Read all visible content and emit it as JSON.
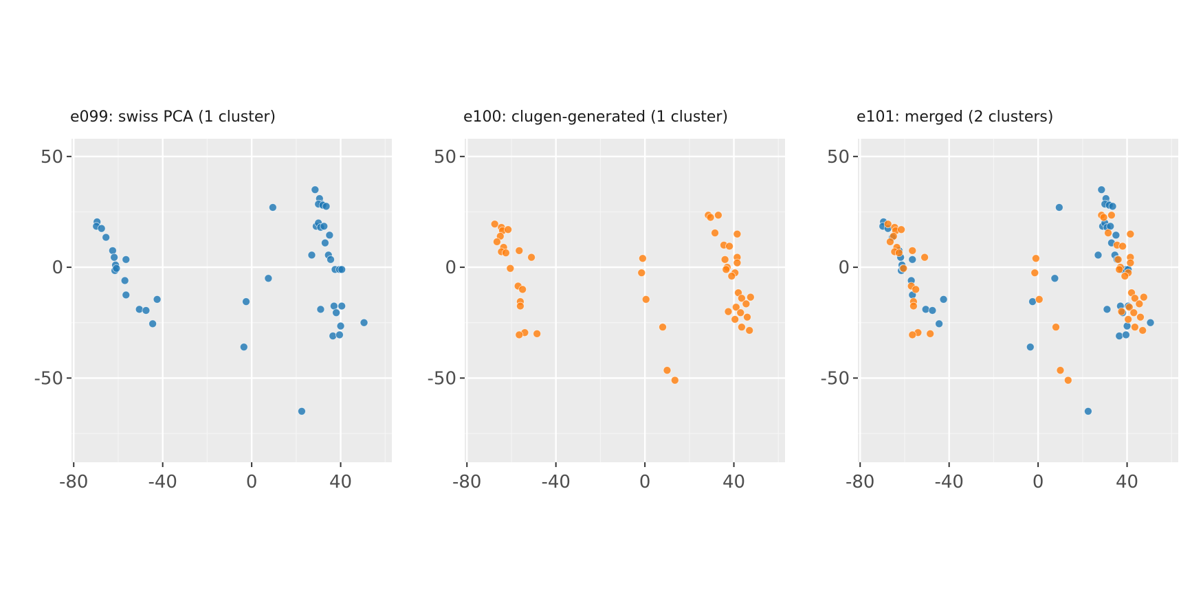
{
  "colors": {
    "background": "#ffffff",
    "panel_background": "#ebebeb",
    "grid_major": "#ffffff",
    "grid_minor": "#f5f5f5",
    "tick_text": "#4d4d4d",
    "title_text": "#1a1a1a"
  },
  "chart_data": [
    {
      "type": "scatter",
      "title": "e099: swiss PCA (1 cluster)",
      "xlabel": "",
      "ylabel": "",
      "xlim": [
        -81,
        63
      ],
      "ylim": [
        -88,
        58
      ],
      "x_ticks": [
        -80,
        -40,
        0,
        40
      ],
      "x_tick_labels": [
        "-80",
        "-40",
        "0",
        "40"
      ],
      "y_ticks": [
        50,
        0,
        -50
      ],
      "y_tick_labels": [
        "50",
        "0",
        "-50"
      ],
      "grid": true,
      "legend": "none",
      "series": [
        {
          "color": "#1f77b4",
          "points": [
            [
              -69.5,
              20.5
            ],
            [
              -69.8,
              18.5
            ],
            [
              -67.5,
              17.5
            ],
            [
              -65.5,
              13.5
            ],
            [
              -62.5,
              7.5
            ],
            [
              -61.8,
              4.5
            ],
            [
              -61.2,
              1.0
            ],
            [
              -61.5,
              -1.5
            ],
            [
              -60.8,
              -0.5
            ],
            [
              -56.5,
              3.5
            ],
            [
              -57.0,
              -6.0
            ],
            [
              -56.5,
              -12.5
            ],
            [
              -50.5,
              -19.0
            ],
            [
              -47.5,
              -19.5
            ],
            [
              -44.5,
              -25.5
            ],
            [
              -42.5,
              -14.5
            ],
            [
              -2.5,
              -15.5
            ],
            [
              -3.5,
              -36.0
            ],
            [
              7.5,
              -5.0
            ],
            [
              9.5,
              27.0
            ],
            [
              28.5,
              35.0
            ],
            [
              30.5,
              31.0
            ],
            [
              31.5,
              28.5
            ],
            [
              30.0,
              28.5
            ],
            [
              29.0,
              18.5
            ],
            [
              30.0,
              20.0
            ],
            [
              31.0,
              18.0
            ],
            [
              32.5,
              18.5
            ],
            [
              33.0,
              11.0
            ],
            [
              35.0,
              14.5
            ],
            [
              34.5,
              5.5
            ],
            [
              35.5,
              3.5
            ],
            [
              27.0,
              5.5
            ],
            [
              37.5,
              -1.0
            ],
            [
              39.5,
              -1.0
            ],
            [
              37.0,
              -17.5
            ],
            [
              40.5,
              -17.5
            ],
            [
              38.0,
              -20.5
            ],
            [
              31.0,
              -19.0
            ],
            [
              40.0,
              -26.5
            ],
            [
              36.5,
              -31.0
            ],
            [
              39.5,
              -30.5
            ],
            [
              50.5,
              -25.0
            ],
            [
              22.5,
              -65.0
            ],
            [
              40.5,
              -1.0
            ],
            [
              32.0,
              28.0
            ],
            [
              33.5,
              27.5
            ]
          ]
        }
      ]
    },
    {
      "type": "scatter",
      "title": "e100: clugen-generated (1 cluster)",
      "xlabel": "",
      "ylabel": "",
      "xlim": [
        -81,
        63
      ],
      "ylim": [
        -88,
        58
      ],
      "x_ticks": [
        -80,
        -40,
        0,
        40
      ],
      "x_tick_labels": [
        "-80",
        "-40",
        "0",
        "40"
      ],
      "y_ticks": [
        50,
        0,
        -50
      ],
      "y_tick_labels": [
        "50",
        "0",
        "-50"
      ],
      "grid": true,
      "legend": "none",
      "series": [
        {
          "color": "#ff7f0e",
          "points": [
            [
              -67.5,
              19.5
            ],
            [
              -64.5,
              18.0
            ],
            [
              -64.0,
              16.5
            ],
            [
              -61.5,
              17.0
            ],
            [
              -65.0,
              14.0
            ],
            [
              -66.5,
              11.5
            ],
            [
              -63.5,
              9.0
            ],
            [
              -64.5,
              7.0
            ],
            [
              -62.5,
              6.5
            ],
            [
              -56.5,
              7.5
            ],
            [
              -51.0,
              4.5
            ],
            [
              -60.5,
              -0.5
            ],
            [
              -57.0,
              -8.5
            ],
            [
              -55.0,
              -10.0
            ],
            [
              -56.0,
              -15.5
            ],
            [
              -56.0,
              -17.5
            ],
            [
              -54.0,
              -29.5
            ],
            [
              -56.5,
              -30.5
            ],
            [
              -48.5,
              -30.0
            ],
            [
              -1.0,
              4.0
            ],
            [
              -1.5,
              -2.5
            ],
            [
              0.5,
              -14.5
            ],
            [
              8.0,
              -27.0
            ],
            [
              10.0,
              -46.5
            ],
            [
              13.5,
              -51.0
            ],
            [
              28.5,
              23.5
            ],
            [
              29.5,
              22.5
            ],
            [
              33.0,
              23.5
            ],
            [
              31.5,
              15.5
            ],
            [
              41.5,
              15.0
            ],
            [
              35.5,
              10.0
            ],
            [
              38.0,
              9.5
            ],
            [
              36.0,
              3.5
            ],
            [
              41.5,
              4.5
            ],
            [
              41.5,
              2.0
            ],
            [
              37.0,
              0.0
            ],
            [
              36.5,
              -1.0
            ],
            [
              40.5,
              -2.5
            ],
            [
              39.0,
              -4.0
            ],
            [
              42.0,
              -11.5
            ],
            [
              43.5,
              -14.0
            ],
            [
              47.5,
              -13.5
            ],
            [
              45.5,
              -16.5
            ],
            [
              37.5,
              -20.0
            ],
            [
              41.0,
              -18.0
            ],
            [
              43.0,
              -20.5
            ],
            [
              46.0,
              -22.5
            ],
            [
              40.5,
              -23.5
            ],
            [
              43.5,
              -27.0
            ],
            [
              47.0,
              -28.5
            ]
          ]
        }
      ]
    },
    {
      "type": "scatter",
      "title": "e101: merged (2 clusters)",
      "xlabel": "",
      "ylabel": "",
      "xlim": [
        -81,
        63
      ],
      "ylim": [
        -88,
        58
      ],
      "x_ticks": [
        -80,
        -40,
        0,
        40
      ],
      "x_tick_labels": [
        "-80",
        "-40",
        "0",
        "40"
      ],
      "y_ticks": [
        50,
        0,
        -50
      ],
      "y_tick_labels": [
        "50",
        "0",
        "-50"
      ],
      "grid": true,
      "legend": "none",
      "series": [
        {
          "color": "#1f77b4",
          "points": [
            [
              -69.5,
              20.5
            ],
            [
              -69.8,
              18.5
            ],
            [
              -67.5,
              17.5
            ],
            [
              -65.5,
              13.5
            ],
            [
              -62.5,
              7.5
            ],
            [
              -61.8,
              4.5
            ],
            [
              -61.2,
              1.0
            ],
            [
              -61.5,
              -1.5
            ],
            [
              -60.8,
              -0.5
            ],
            [
              -56.5,
              3.5
            ],
            [
              -57.0,
              -6.0
            ],
            [
              -56.5,
              -12.5
            ],
            [
              -50.5,
              -19.0
            ],
            [
              -47.5,
              -19.5
            ],
            [
              -44.5,
              -25.5
            ],
            [
              -42.5,
              -14.5
            ],
            [
              -2.5,
              -15.5
            ],
            [
              -3.5,
              -36.0
            ],
            [
              7.5,
              -5.0
            ],
            [
              9.5,
              27.0
            ],
            [
              28.5,
              35.0
            ],
            [
              30.5,
              31.0
            ],
            [
              31.5,
              28.5
            ],
            [
              30.0,
              28.5
            ],
            [
              29.0,
              18.5
            ],
            [
              30.0,
              20.0
            ],
            [
              31.0,
              18.0
            ],
            [
              32.5,
              18.5
            ],
            [
              33.0,
              11.0
            ],
            [
              35.0,
              14.5
            ],
            [
              34.5,
              5.5
            ],
            [
              35.5,
              3.5
            ],
            [
              27.0,
              5.5
            ],
            [
              37.5,
              -1.0
            ],
            [
              39.5,
              -1.0
            ],
            [
              37.0,
              -17.5
            ],
            [
              40.5,
              -17.5
            ],
            [
              38.0,
              -20.5
            ],
            [
              31.0,
              -19.0
            ],
            [
              40.0,
              -26.5
            ],
            [
              36.5,
              -31.0
            ],
            [
              39.5,
              -30.5
            ],
            [
              50.5,
              -25.0
            ],
            [
              22.5,
              -65.0
            ],
            [
              40.5,
              -1.0
            ],
            [
              32.0,
              28.0
            ],
            [
              33.5,
              27.5
            ]
          ]
        },
        {
          "color": "#ff7f0e",
          "points": [
            [
              -67.5,
              19.5
            ],
            [
              -64.5,
              18.0
            ],
            [
              -64.0,
              16.5
            ],
            [
              -61.5,
              17.0
            ],
            [
              -65.0,
              14.0
            ],
            [
              -66.5,
              11.5
            ],
            [
              -63.5,
              9.0
            ],
            [
              -64.5,
              7.0
            ],
            [
              -62.5,
              6.5
            ],
            [
              -56.5,
              7.5
            ],
            [
              -51.0,
              4.5
            ],
            [
              -60.5,
              -0.5
            ],
            [
              -57.0,
              -8.5
            ],
            [
              -55.0,
              -10.0
            ],
            [
              -56.0,
              -15.5
            ],
            [
              -56.0,
              -17.5
            ],
            [
              -54.0,
              -29.5
            ],
            [
              -56.5,
              -30.5
            ],
            [
              -48.5,
              -30.0
            ],
            [
              -1.0,
              4.0
            ],
            [
              -1.5,
              -2.5
            ],
            [
              0.5,
              -14.5
            ],
            [
              8.0,
              -27.0
            ],
            [
              10.0,
              -46.5
            ],
            [
              13.5,
              -51.0
            ],
            [
              28.5,
              23.5
            ],
            [
              29.5,
              22.5
            ],
            [
              33.0,
              23.5
            ],
            [
              31.5,
              15.5
            ],
            [
              41.5,
              15.0
            ],
            [
              35.5,
              10.0
            ],
            [
              38.0,
              9.5
            ],
            [
              36.0,
              3.5
            ],
            [
              41.5,
              4.5
            ],
            [
              41.5,
              2.0
            ],
            [
              37.0,
              0.0
            ],
            [
              36.5,
              -1.0
            ],
            [
              40.5,
              -2.5
            ],
            [
              39.0,
              -4.0
            ],
            [
              42.0,
              -11.5
            ],
            [
              43.5,
              -14.0
            ],
            [
              47.5,
              -13.5
            ],
            [
              45.5,
              -16.5
            ],
            [
              37.5,
              -20.0
            ],
            [
              41.0,
              -18.0
            ],
            [
              43.0,
              -20.5
            ],
            [
              46.0,
              -22.5
            ],
            [
              40.5,
              -23.5
            ],
            [
              43.5,
              -27.0
            ],
            [
              47.0,
              -28.5
            ]
          ]
        }
      ]
    }
  ]
}
